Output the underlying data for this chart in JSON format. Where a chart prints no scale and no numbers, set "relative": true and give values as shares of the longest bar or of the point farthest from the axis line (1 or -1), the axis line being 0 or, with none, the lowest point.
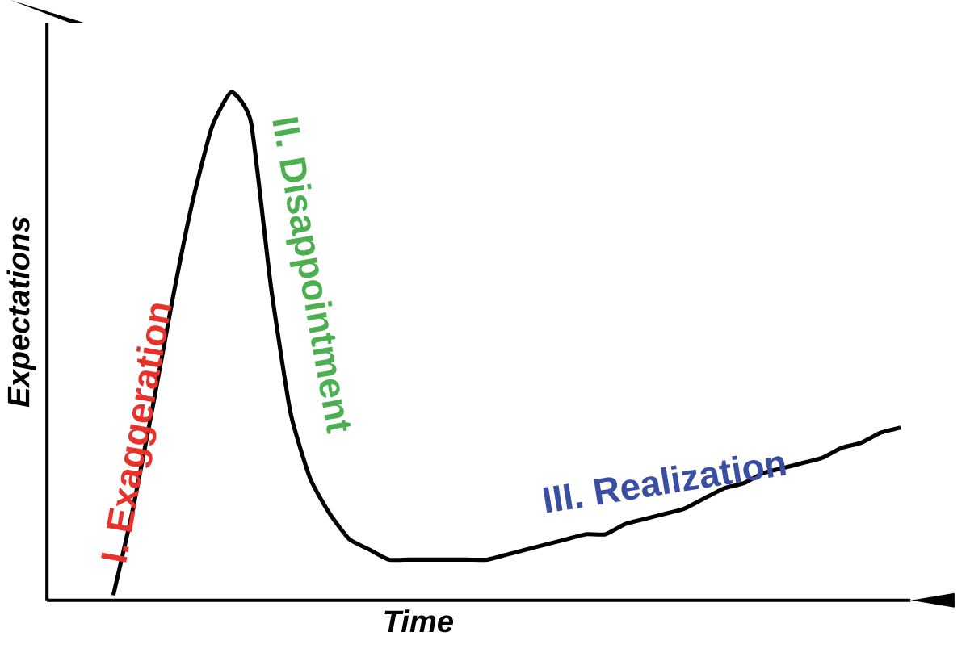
{
  "chart_data": {
    "type": "line",
    "relative": true,
    "xlabel": "Time",
    "ylabel": "Expectations",
    "color": "#000000",
    "categories": [
      null,
      null,
      null,
      null,
      null,
      null,
      null,
      null,
      null,
      null,
      null,
      null,
      null,
      null,
      null,
      null,
      null,
      null,
      null,
      null,
      null,
      null,
      null,
      null,
      null,
      null,
      null,
      null,
      null,
      null,
      null,
      null,
      null,
      null,
      null,
      null,
      null,
      null,
      null,
      null,
      null
    ],
    "values": [
      0.01,
      0.18,
      0.38,
      0.59,
      0.78,
      0.93,
      1.0,
      0.94,
      0.62,
      0.37,
      0.24,
      0.17,
      0.12,
      0.1,
      0.08,
      0.08,
      0.08,
      0.08,
      0.08,
      0.08,
      0.09,
      0.1,
      0.11,
      0.12,
      0.13,
      0.13,
      0.15,
      0.16,
      0.17,
      0.18,
      0.2,
      0.22,
      0.23,
      0.25,
      0.26,
      0.27,
      0.28,
      0.3,
      0.31,
      0.33,
      0.34
    ],
    "annotations": [
      "I. Exaggeration",
      "II. Disappointment",
      "III. Realization"
    ]
  }
}
